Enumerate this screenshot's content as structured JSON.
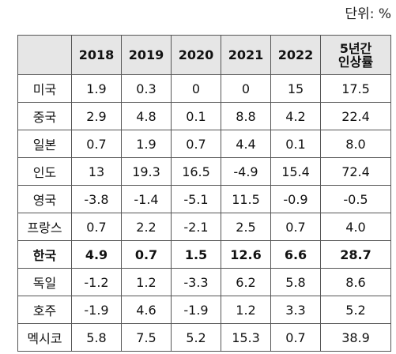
{
  "unit_label": "단위: %",
  "table": {
    "header": {
      "corner": "",
      "years": [
        "2018",
        "2019",
        "2020",
        "2021",
        "2022"
      ],
      "rate_line1": "5년간",
      "rate_line2": "인상률"
    },
    "rows": [
      {
        "country": "미국",
        "values": [
          "1.9",
          "0.3",
          "0",
          "0",
          "15",
          "17.5"
        ]
      },
      {
        "country": "중국",
        "values": [
          "2.9",
          "4.8",
          "0.1",
          "8.8",
          "4.2",
          "22.4"
        ]
      },
      {
        "country": "일본",
        "values": [
          "0.7",
          "1.9",
          "0.7",
          "4.4",
          "0.1",
          "8.0"
        ]
      },
      {
        "country": "인도",
        "values": [
          "13",
          "19.3",
          "16.5",
          "-4.9",
          "15.4",
          "72.4"
        ]
      },
      {
        "country": "영국",
        "values": [
          "-3.8",
          "-1.4",
          "-5.1",
          "11.5",
          "-0.9",
          "-0.5"
        ]
      },
      {
        "country": "프랑스",
        "values": [
          "0.7",
          "2.2",
          "-2.1",
          "2.5",
          "0.7",
          "4.0"
        ]
      },
      {
        "country": "한국",
        "values": [
          "4.9",
          "0.7",
          "1.5",
          "12.6",
          "6.6",
          "28.7"
        ],
        "highlight": true
      },
      {
        "country": "독일",
        "values": [
          "-1.2",
          "1.2",
          "-3.3",
          "6.2",
          "5.8",
          "8.6"
        ]
      },
      {
        "country": "호주",
        "values": [
          "-1.9",
          "4.6",
          "-1.9",
          "1.2",
          "3.3",
          "5.2"
        ]
      },
      {
        "country": "멕시코",
        "values": [
          "5.8",
          "7.5",
          "5.2",
          "15.3",
          "0.7",
          "38.9"
        ]
      }
    ]
  }
}
